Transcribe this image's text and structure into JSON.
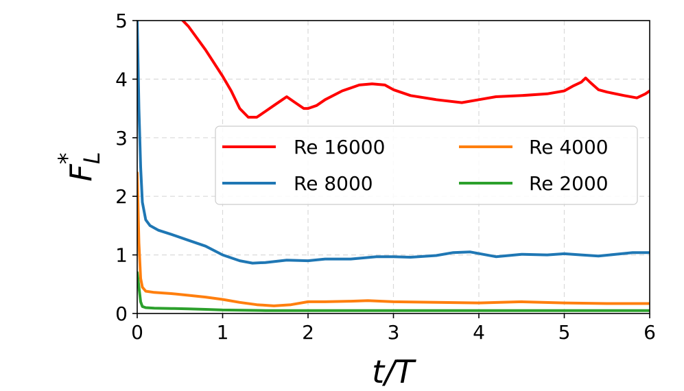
{
  "chart_data": {
    "type": "line",
    "title": "",
    "xlabel": "t/T",
    "ylabel_base": "F",
    "ylabel_sub": "L",
    "ylabel_sup": "*",
    "xlim": [
      0,
      6
    ],
    "ylim": [
      0,
      5
    ],
    "xticks": [
      "0",
      "1",
      "2",
      "3",
      "4",
      "5",
      "6"
    ],
    "yticks": [
      "0",
      "1",
      "2",
      "3",
      "4",
      "5"
    ],
    "grid": true,
    "legend_placement": "center-right",
    "series": [
      {
        "name": "Re 16000",
        "color": "#ff0000",
        "x": [
          0.5,
          0.6,
          0.8,
          1.0,
          1.1,
          1.2,
          1.3,
          1.4,
          1.5,
          1.6,
          1.7,
          1.75,
          1.85,
          1.95,
          2.0,
          2.1,
          2.2,
          2.4,
          2.6,
          2.75,
          2.9,
          3.0,
          3.2,
          3.5,
          3.8,
          4.0,
          4.2,
          4.5,
          4.8,
          5.0,
          5.1,
          5.2,
          5.25,
          5.3,
          5.4,
          5.5,
          5.7,
          5.85,
          5.95,
          6.0
        ],
        "y": [
          5.05,
          4.9,
          4.5,
          4.05,
          3.8,
          3.5,
          3.35,
          3.35,
          3.45,
          3.55,
          3.65,
          3.7,
          3.6,
          3.5,
          3.5,
          3.55,
          3.65,
          3.8,
          3.9,
          3.92,
          3.9,
          3.82,
          3.72,
          3.65,
          3.6,
          3.65,
          3.7,
          3.72,
          3.75,
          3.8,
          3.88,
          3.95,
          4.02,
          3.95,
          3.82,
          3.78,
          3.72,
          3.68,
          3.75,
          3.8
        ]
      },
      {
        "name": "Re 8000",
        "color": "#1f77b4",
        "x": [
          0.0,
          0.02,
          0.04,
          0.06,
          0.1,
          0.15,
          0.25,
          0.4,
          0.6,
          0.8,
          1.0,
          1.2,
          1.35,
          1.5,
          1.75,
          2.0,
          2.2,
          2.5,
          2.8,
          3.0,
          3.2,
          3.5,
          3.7,
          3.9,
          4.2,
          4.5,
          4.8,
          5.0,
          5.2,
          5.4,
          5.6,
          5.8,
          6.0
        ],
        "y": [
          5.0,
          3.5,
          2.5,
          1.9,
          1.6,
          1.5,
          1.42,
          1.35,
          1.25,
          1.15,
          1.0,
          0.9,
          0.86,
          0.87,
          0.91,
          0.9,
          0.93,
          0.93,
          0.97,
          0.97,
          0.96,
          0.99,
          1.04,
          1.05,
          0.97,
          1.01,
          1.0,
          1.02,
          1.0,
          0.98,
          1.01,
          1.04,
          1.04
        ]
      },
      {
        "name": "Re 4000",
        "color": "#ff7f0e",
        "x": [
          0.0,
          0.02,
          0.04,
          0.06,
          0.1,
          0.2,
          0.4,
          0.6,
          0.8,
          1.0,
          1.2,
          1.4,
          1.6,
          1.8,
          2.0,
          2.2,
          2.5,
          2.7,
          3.0,
          3.5,
          4.0,
          4.5,
          5.0,
          5.5,
          6.0
        ],
        "y": [
          2.4,
          1.2,
          0.6,
          0.45,
          0.38,
          0.36,
          0.34,
          0.31,
          0.28,
          0.24,
          0.19,
          0.15,
          0.13,
          0.15,
          0.2,
          0.2,
          0.21,
          0.22,
          0.2,
          0.19,
          0.18,
          0.2,
          0.18,
          0.17,
          0.17
        ]
      },
      {
        "name": "Re 2000",
        "color": "#2ca02c",
        "x": [
          0.0,
          0.02,
          0.04,
          0.06,
          0.1,
          0.2,
          0.4,
          0.6,
          0.8,
          1.0,
          1.5,
          2.0,
          3.0,
          4.0,
          5.0,
          6.0
        ],
        "y": [
          0.7,
          0.45,
          0.2,
          0.12,
          0.1,
          0.09,
          0.085,
          0.08,
          0.07,
          0.06,
          0.05,
          0.05,
          0.05,
          0.05,
          0.05,
          0.05
        ]
      }
    ]
  }
}
